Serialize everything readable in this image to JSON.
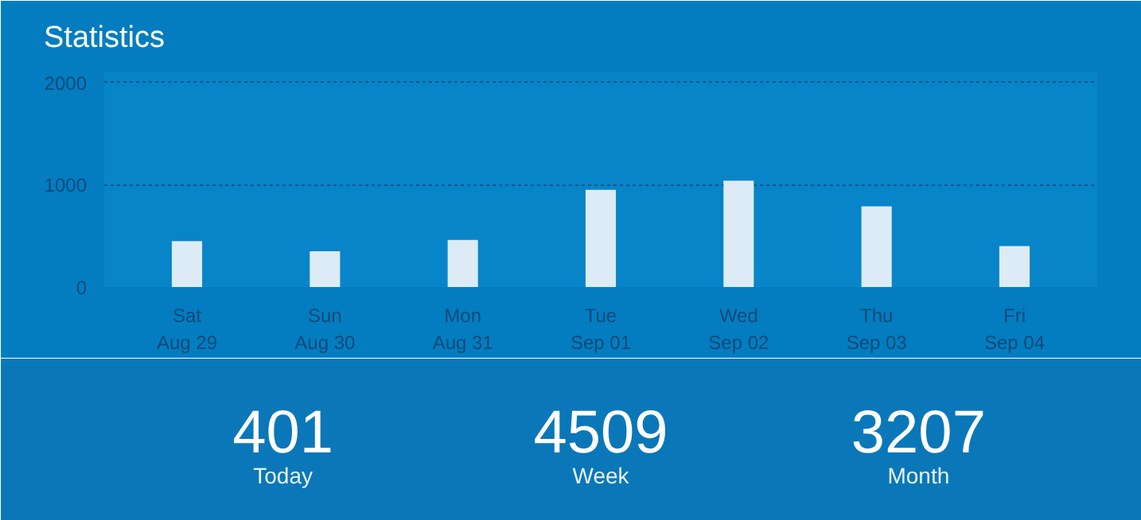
{
  "chart_data": [
    {
      "type": "bar",
      "title": "Statistics",
      "categories": [
        "Sat\nAug 29",
        "Sun\nAug 30",
        "Mon\nAug 31",
        "Tue\nSep 01",
        "Wed\nSep 02",
        "Thu\nSep 03",
        "Fri\nSep 04"
      ],
      "values": [
        450,
        350,
        460,
        950,
        1040,
        790,
        400
      ],
      "color": "#dcebf5",
      "ylim": [
        0,
        2100
      ],
      "yticks": [
        0,
        1000,
        2000
      ],
      "grid": "y"
    },
    {
      "type": "other",
      "annotations": [
        "401",
        "Today",
        "4509",
        "Week",
        "3207",
        "Month"
      ]
    }
  ]
}
